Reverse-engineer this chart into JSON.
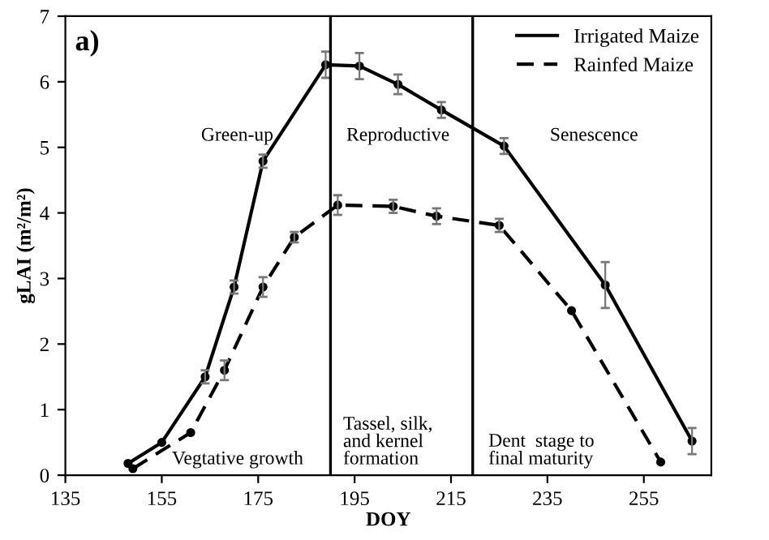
{
  "chart_data": {
    "type": "line",
    "title": "a)",
    "xlabel": "DOY",
    "ylabel": "gLAI (m²/m²)",
    "xlim": [
      135,
      269
    ],
    "xticks": [
      135,
      155,
      175,
      195,
      215,
      235,
      255
    ],
    "ylim": [
      0,
      7
    ],
    "yticks": [
      0,
      1,
      2,
      3,
      4,
      5,
      6,
      7
    ],
    "grid": false,
    "legend": "top right",
    "marker": "circle",
    "series": [
      {
        "name": "Irrigated Maize",
        "color": "#000000",
        "line_style": "solid",
        "x": [
          148,
          155,
          164,
          170,
          176,
          189,
          196,
          204,
          213,
          226,
          247,
          265
        ],
        "values": [
          0.18,
          0.5,
          1.5,
          2.87,
          4.79,
          6.26,
          6.24,
          5.96,
          5.57,
          5.02,
          2.9,
          0.52
        ],
        "errors": [
          null,
          null,
          0.1,
          0.1,
          0.1,
          0.2,
          0.2,
          0.15,
          0.12,
          0.12,
          0.35,
          0.2
        ]
      },
      {
        "name": "Rainfed Maize",
        "color": "#000000",
        "line_style": "dashed",
        "x": [
          149,
          161,
          168,
          176,
          182.5,
          191.5,
          203,
          212,
          225,
          240,
          258.5
        ],
        "values": [
          0.1,
          0.65,
          1.6,
          2.87,
          3.63,
          4.12,
          4.1,
          3.95,
          3.81,
          2.51,
          0.2
        ],
        "errors": [
          null,
          null,
          0.15,
          0.15,
          0.08,
          0.15,
          0.1,
          0.12,
          0.1,
          null,
          null
        ]
      }
    ],
    "ref_lines": [
      {
        "axis": "x",
        "value": 190,
        "color": "#000000",
        "line_style": "solid"
      },
      {
        "axis": "x",
        "value": 219.5,
        "color": "#000000",
        "line_style": "solid"
      }
    ],
    "annotations": [
      "Green-up",
      "Reproductive",
      "Senescence",
      "Vegtative growth",
      "Tassel, silk,\nand kernel\nformation",
      "Dent  stage to\nfinal maturity"
    ]
  }
}
